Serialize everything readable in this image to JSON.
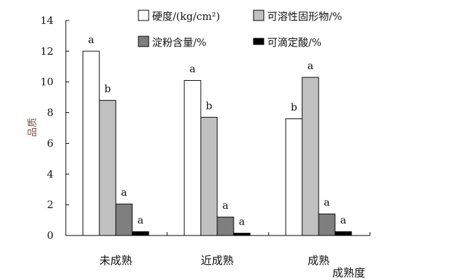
{
  "chart_data": {
    "type": "bar",
    "categories": [
      "未成熟",
      "近成熟",
      "成熟"
    ],
    "series": [
      {
        "name": "硬度/(kg/cm²)",
        "values": [
          12.0,
          10.1,
          7.6
        ],
        "color": "#ffffff",
        "significance": [
          "a",
          "a",
          "b"
        ]
      },
      {
        "name": "可溶性固形物/%",
        "values": [
          8.8,
          7.7,
          10.3
        ],
        "color": "#c0c0c0",
        "significance": [
          "b",
          "b",
          "a"
        ]
      },
      {
        "name": "淀粉含量/%",
        "values": [
          2.05,
          1.2,
          1.4
        ],
        "color": "#7f7f7f",
        "significance": [
          "a",
          "a",
          "a"
        ]
      },
      {
        "name": "可滴定酸/%",
        "values": [
          0.25,
          0.15,
          0.25
        ],
        "color": "#000000",
        "significance": [
          "a",
          "a",
          "a"
        ]
      }
    ],
    "xlabel": "成熟度",
    "ylabel": "品质",
    "ylim": [
      0,
      14
    ],
    "yticks": [
      "0",
      "2",
      "4",
      "6",
      "8",
      "10",
      "12",
      "14"
    ],
    "grid": false,
    "legend_position": "top"
  }
}
